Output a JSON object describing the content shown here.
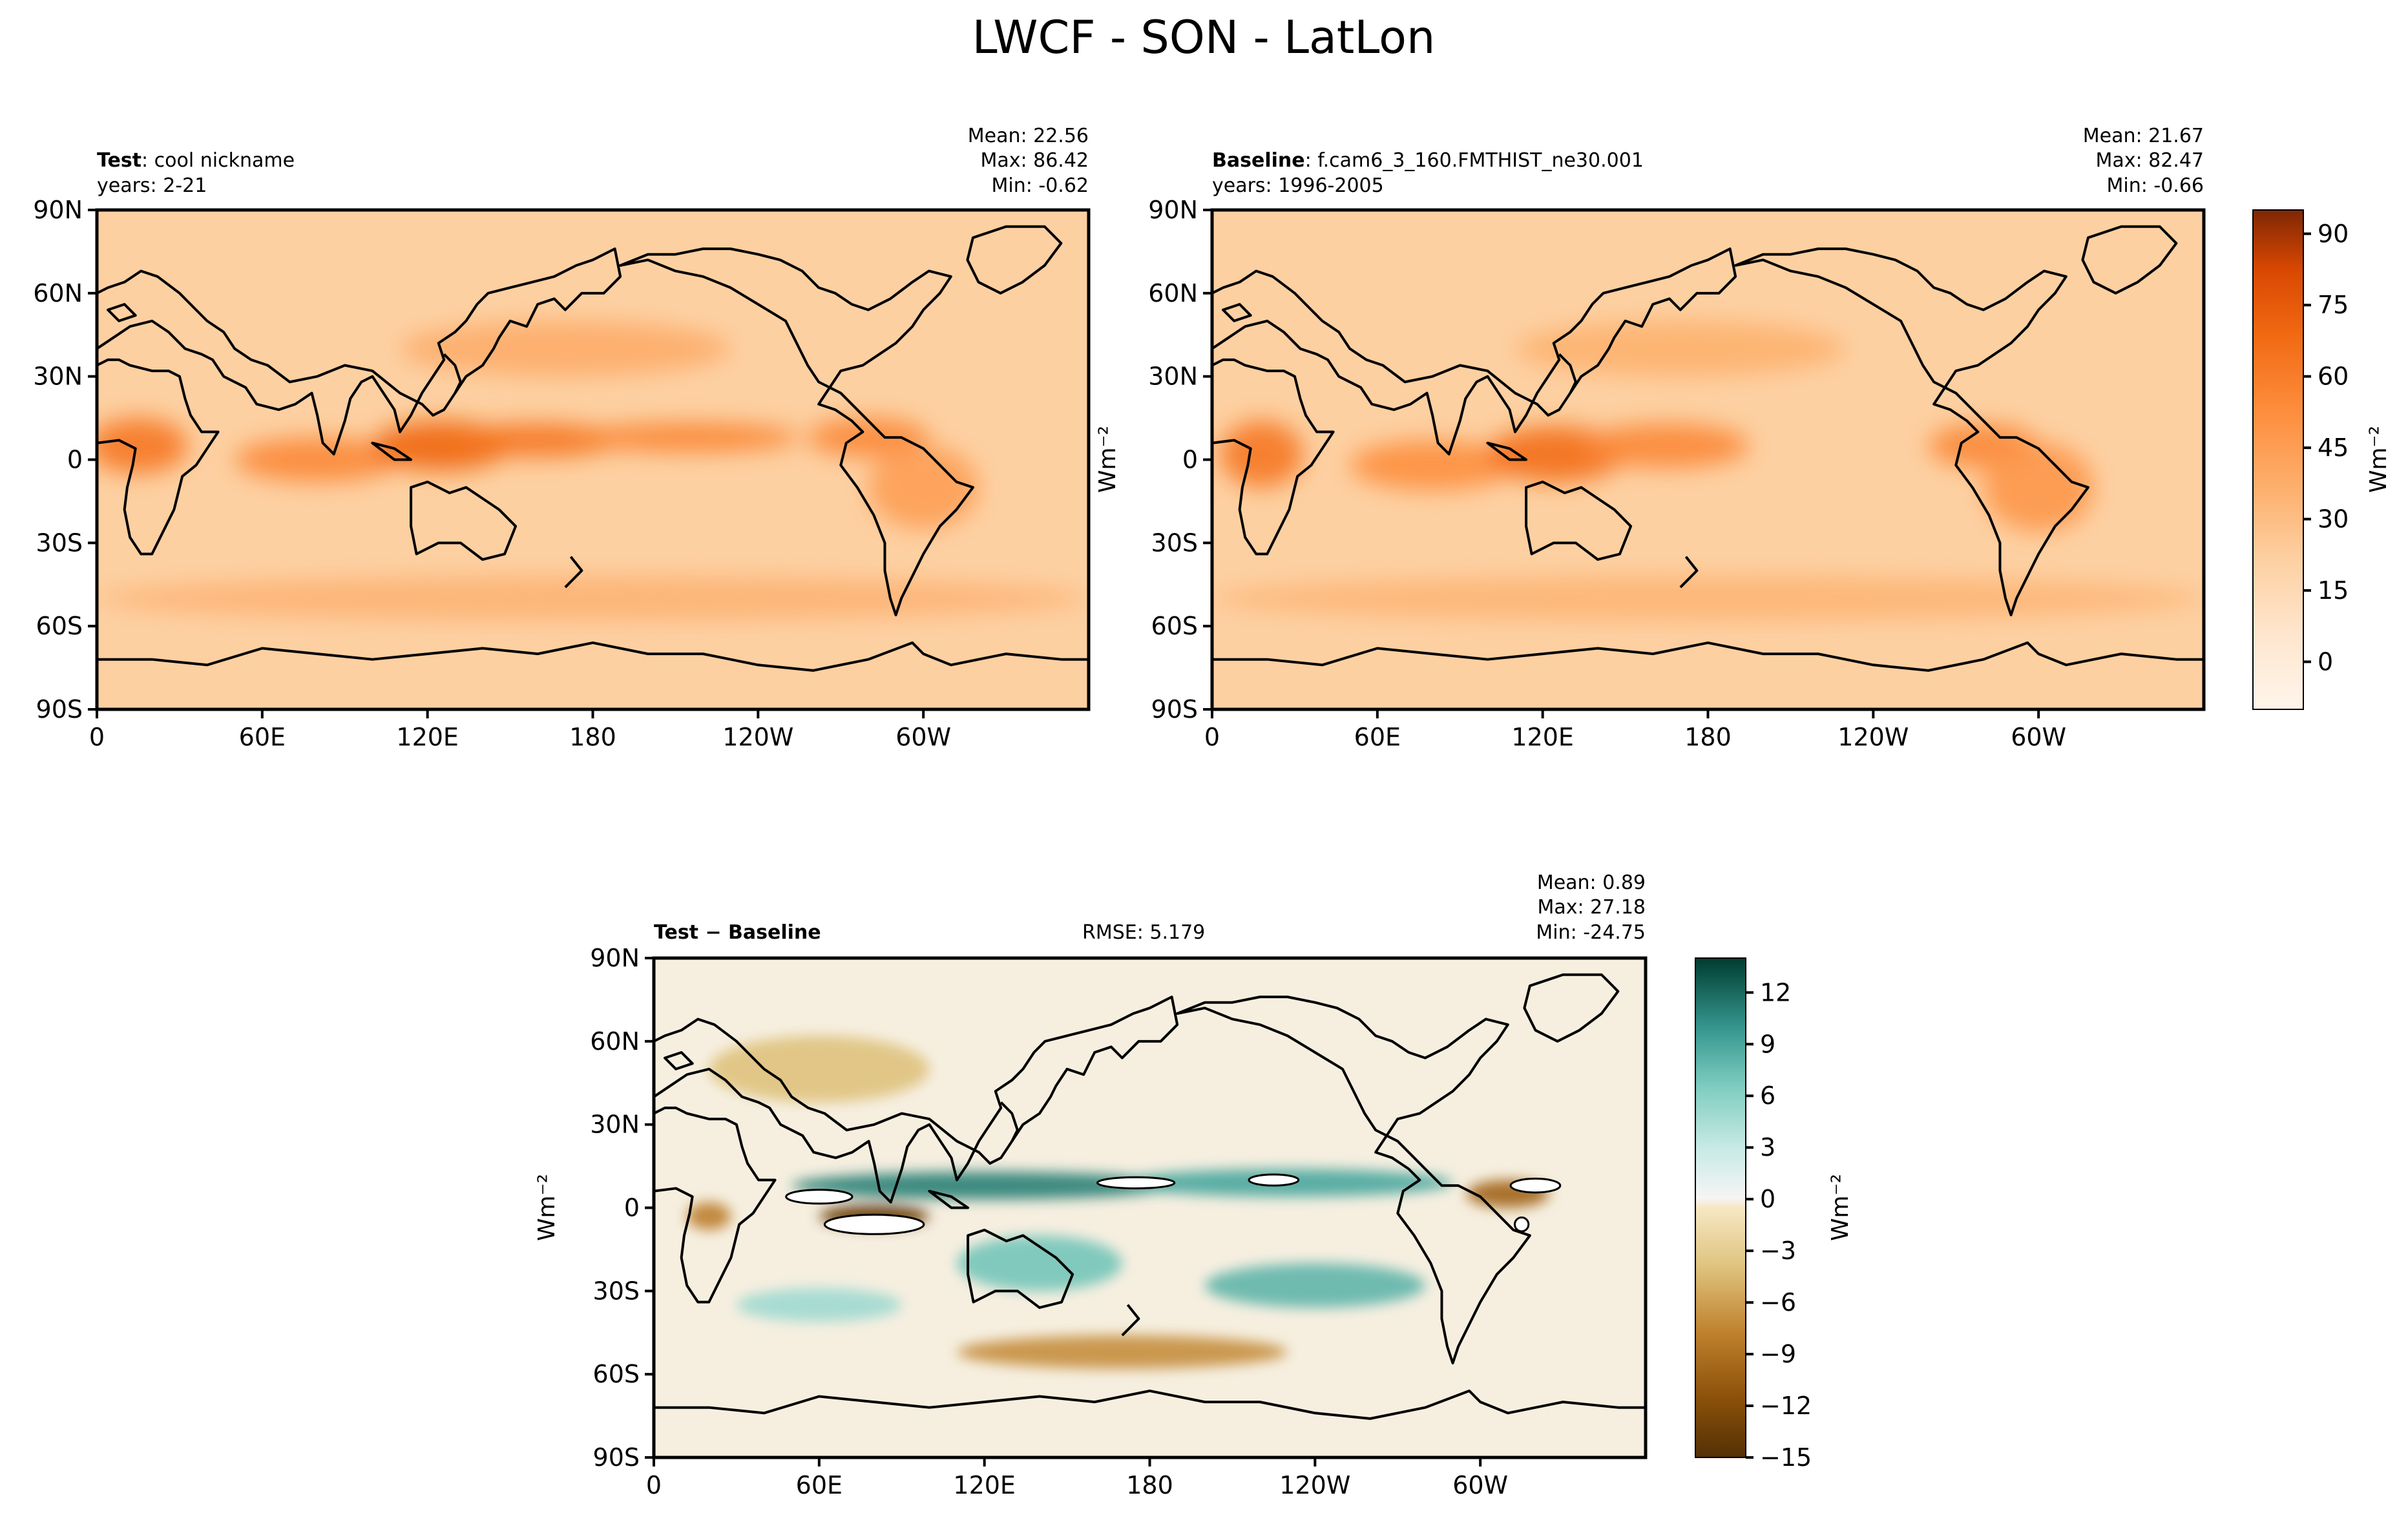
{
  "figure": {
    "title": "LWCF - SON - LatLon"
  },
  "chart_data": [
    {
      "type": "heatmap",
      "id": "test",
      "label_bold": "Test",
      "label_rest": ": cool nickname",
      "years": "years: 2-21",
      "stats": {
        "mean": "Mean: 22.56",
        "max": "Max: 86.42",
        "min": "Min: -0.62"
      },
      "x_ticks": [
        "0",
        "60E",
        "120E",
        "180",
        "120W",
        "60W"
      ],
      "y_ticks": [
        "90N",
        "60N",
        "30N",
        "0",
        "30S",
        "60S",
        "90S"
      ],
      "xlim": [
        0,
        360
      ],
      "ylim": [
        -90,
        90
      ],
      "colormap": "Oranges",
      "blobs": [
        {
          "lon": 15,
          "lat": 5,
          "value": 62,
          "sx": 18,
          "sy": 10
        },
        {
          "lon": 80,
          "lat": 0,
          "value": 55,
          "sx": 30,
          "sy": 8
        },
        {
          "lon": 125,
          "lat": 5,
          "value": 70,
          "sx": 25,
          "sy": 9
        },
        {
          "lon": 160,
          "lat": 7,
          "value": 64,
          "sx": 30,
          "sy": 6
        },
        {
          "lon": 215,
          "lat": 8,
          "value": 58,
          "sx": 40,
          "sy": 5
        },
        {
          "lon": 280,
          "lat": 8,
          "value": 55,
          "sx": 22,
          "sy": 7
        },
        {
          "lon": 300,
          "lat": -10,
          "value": 45,
          "sx": 20,
          "sy": 15
        },
        {
          "lon": 170,
          "lat": 40,
          "value": 38,
          "sx": 60,
          "sy": 10
        },
        {
          "lon": 180,
          "lat": -50,
          "value": 35,
          "sx": 180,
          "sy": 8
        }
      ],
      "base_value": 14
    },
    {
      "type": "heatmap",
      "id": "baseline",
      "label_bold": "Baseline",
      "label_rest": ": f.cam6_3_160.FMTHIST_ne30.001",
      "years": "years: 1996-2005",
      "stats": {
        "mean": "Mean: 21.67",
        "max": "Max: 82.47",
        "min": "Min: -0.66"
      },
      "x_ticks": [
        "0",
        "60E",
        "120E",
        "180",
        "120W",
        "60W"
      ],
      "y_ticks": [
        "90N",
        "60N",
        "30N",
        "0",
        "30S",
        "60S",
        "90S"
      ],
      "xlim": [
        0,
        360
      ],
      "ylim": [
        -90,
        90
      ],
      "colormap": "Oranges",
      "blobs": [
        {
          "lon": 18,
          "lat": 2,
          "value": 62,
          "sx": 15,
          "sy": 12
        },
        {
          "lon": 80,
          "lat": -2,
          "value": 52,
          "sx": 30,
          "sy": 9
        },
        {
          "lon": 125,
          "lat": 2,
          "value": 66,
          "sx": 25,
          "sy": 10
        },
        {
          "lon": 165,
          "lat": 5,
          "value": 55,
          "sx": 30,
          "sy": 8
        },
        {
          "lon": 280,
          "lat": 5,
          "value": 55,
          "sx": 20,
          "sy": 8
        },
        {
          "lon": 300,
          "lat": -10,
          "value": 48,
          "sx": 20,
          "sy": 16
        },
        {
          "lon": 170,
          "lat": 40,
          "value": 36,
          "sx": 60,
          "sy": 10
        },
        {
          "lon": 180,
          "lat": -50,
          "value": 34,
          "sx": 180,
          "sy": 8
        }
      ],
      "base_value": 14,
      "colorbar": {
        "label": "Wm⁻²",
        "ticks": [
          "90",
          "75",
          "60",
          "45",
          "30",
          "15",
          "0"
        ],
        "tick_values": [
          90,
          75,
          60,
          45,
          30,
          15,
          0
        ],
        "range": [
          -10,
          95
        ]
      }
    },
    {
      "type": "heatmap",
      "id": "diff",
      "label_bold": "Test − Baseline",
      "rmse": "RMSE: 5.179",
      "ylabel": "Wm⁻²",
      "stats": {
        "mean": "Mean:  0.89",
        "max": "Max: 27.18",
        "min": "Min: -24.75"
      },
      "x_ticks": [
        "0",
        "60E",
        "120E",
        "180",
        "120W",
        "60W"
      ],
      "y_ticks": [
        "90N",
        "60N",
        "30N",
        "0",
        "30S",
        "60S",
        "90S"
      ],
      "xlim": [
        0,
        360
      ],
      "ylim": [
        -90,
        90
      ],
      "colormap": "BrBG",
      "blobs": [
        {
          "lon": 120,
          "lat": 8,
          "value": 11,
          "sx": 70,
          "sy": 5
        },
        {
          "lon": 230,
          "lat": 9,
          "value": 9,
          "sx": 60,
          "sy": 5
        },
        {
          "lon": 80,
          "lat": -3,
          "value": -14,
          "sx": 20,
          "sy": 4
        },
        {
          "lon": 310,
          "lat": 5,
          "value": -10,
          "sx": 15,
          "sy": 5
        },
        {
          "lon": 20,
          "lat": -3,
          "value": -8,
          "sx": 8,
          "sy": 5
        },
        {
          "lon": 140,
          "lat": -20,
          "value": 7,
          "sx": 30,
          "sy": 10
        },
        {
          "lon": 240,
          "lat": -28,
          "value": 8,
          "sx": 40,
          "sy": 8
        },
        {
          "lon": 170,
          "lat": -52,
          "value": -7,
          "sx": 60,
          "sy": 6
        },
        {
          "lon": 60,
          "lat": 50,
          "value": -4,
          "sx": 40,
          "sy": 12
        },
        {
          "lon": 60,
          "lat": -35,
          "value": 5,
          "sx": 30,
          "sy": 6
        }
      ],
      "white_patches": [
        {
          "lon": 60,
          "lat": 4,
          "rx": 12,
          "ry": 2.5
        },
        {
          "lon": 80,
          "lat": -6,
          "rx": 18,
          "ry": 3.5
        },
        {
          "lon": 175,
          "lat": 9,
          "rx": 14,
          "ry": 2
        },
        {
          "lon": 225,
          "lat": 10,
          "rx": 9,
          "ry": 2
        },
        {
          "lon": 320,
          "lat": 8,
          "rx": 9,
          "ry": 2.5
        },
        {
          "lon": 315,
          "lat": -6,
          "rx": 2.5,
          "ry": 2.5
        }
      ],
      "base_value": 0,
      "colorbar": {
        "label": "Wm⁻²",
        "ticks": [
          "12",
          "9",
          "6",
          "3",
          "0",
          "−3",
          "−6",
          "−9",
          "−12",
          "−15"
        ],
        "tick_values": [
          12,
          9,
          6,
          3,
          0,
          -3,
          -6,
          -9,
          -12,
          -15
        ],
        "range": [
          -15,
          14
        ]
      }
    }
  ]
}
